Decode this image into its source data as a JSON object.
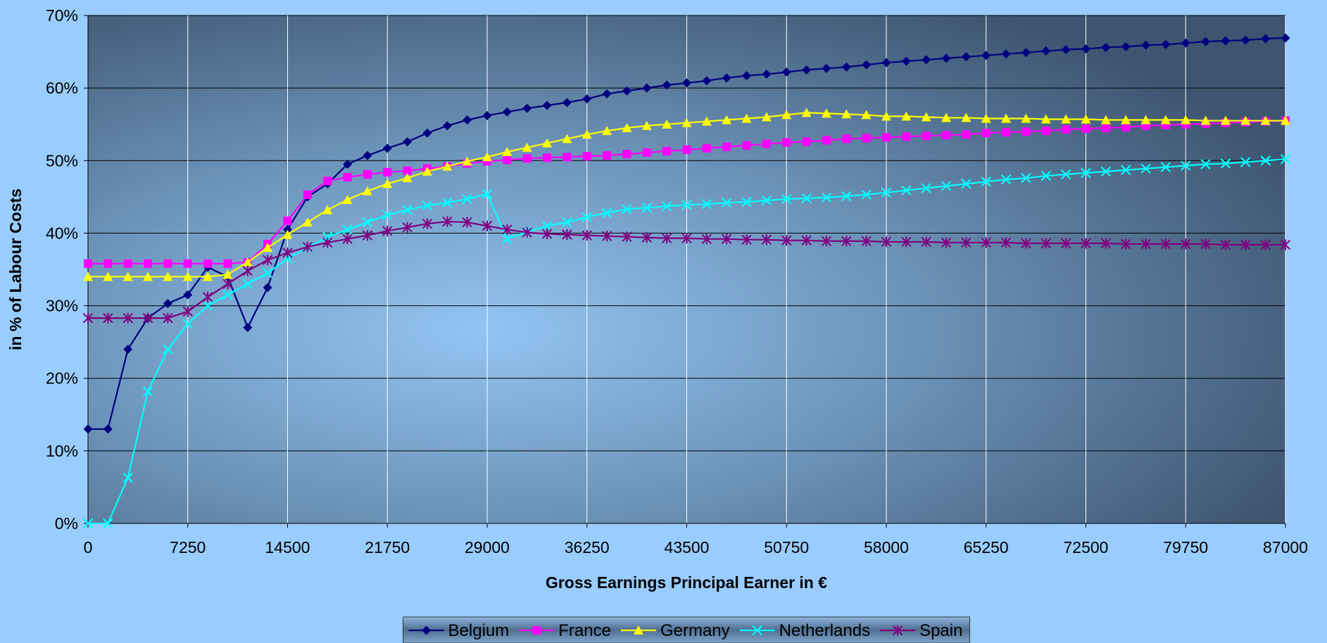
{
  "chart_data": {
    "type": "line",
    "xlabel": "Gross Earnings Principal Earner in €",
    "ylabel": "in % of Labour Costs",
    "x": [
      0,
      1450,
      2900,
      4350,
      5800,
      7250,
      8700,
      10150,
      11600,
      13050,
      14500,
      15950,
      17400,
      18850,
      20300,
      21750,
      23200,
      24650,
      26100,
      27550,
      29000,
      30450,
      31900,
      33350,
      34800,
      36250,
      37700,
      39150,
      40600,
      42050,
      43500,
      44950,
      46400,
      47850,
      49300,
      50750,
      52200,
      53650,
      55100,
      56550,
      58000,
      59450,
      60900,
      62350,
      63800,
      65250,
      66700,
      68150,
      69600,
      71050,
      72500,
      73950,
      75400,
      76850,
      78300,
      79750,
      81200,
      82650,
      84100,
      85550,
      87000
    ],
    "series": [
      {
        "name": "Belgium",
        "color": "#000080",
        "marker": "diamond",
        "values": [
          13,
          13,
          24,
          28.3,
          30.3,
          31.5,
          35.3,
          34,
          27,
          32.5,
          40.5,
          45,
          46.8,
          49.5,
          50.7,
          51.7,
          52.6,
          53.8,
          54.8,
          55.6,
          56.2,
          56.7,
          57.2,
          57.6,
          58,
          58.5,
          59.2,
          59.6,
          60,
          60.4,
          60.7,
          61,
          61.4,
          61.7,
          61.9,
          62.2,
          62.5,
          62.7,
          62.9,
          63.2,
          63.5,
          63.7,
          63.9,
          64.1,
          64.3,
          64.5,
          64.7,
          64.9,
          65.1,
          65.3,
          65.4,
          65.6,
          65.7,
          65.9,
          66,
          66.2,
          66.4,
          66.5,
          66.6,
          66.8,
          66.9
        ]
      },
      {
        "name": "France",
        "color": "#ff00ff",
        "marker": "square",
        "values": [
          35.8,
          35.8,
          35.8,
          35.8,
          35.8,
          35.8,
          35.8,
          35.8,
          36,
          38.5,
          41.7,
          45.3,
          47.2,
          47.7,
          48.1,
          48.4,
          48.6,
          48.9,
          49.2,
          49.6,
          49.9,
          50.1,
          50.3,
          50.4,
          50.5,
          50.6,
          50.7,
          50.9,
          51.1,
          51.3,
          51.5,
          51.7,
          51.9,
          52.1,
          52.3,
          52.5,
          52.6,
          52.8,
          53,
          53.1,
          53.2,
          53.3,
          53.4,
          53.5,
          53.6,
          53.8,
          53.9,
          54,
          54.1,
          54.3,
          54.4,
          54.5,
          54.6,
          54.8,
          54.9,
          55,
          55.1,
          55.2,
          55.3,
          55.4,
          55.5
        ]
      },
      {
        "name": "Germany",
        "color": "#ffff00",
        "marker": "triangle",
        "values": [
          34,
          34,
          34,
          34,
          34,
          34,
          34,
          34.3,
          36,
          38,
          39.8,
          41.5,
          43.2,
          44.6,
          45.8,
          46.8,
          47.6,
          48.5,
          49.2,
          49.9,
          50.5,
          51.2,
          51.8,
          52.4,
          53,
          53.6,
          54.1,
          54.5,
          54.8,
          55,
          55.2,
          55.4,
          55.6,
          55.8,
          56,
          56.3,
          56.6,
          56.5,
          56.4,
          56.3,
          56.1,
          56.1,
          56,
          55.9,
          55.9,
          55.8,
          55.8,
          55.8,
          55.7,
          55.7,
          55.7,
          55.6,
          55.6,
          55.6,
          55.6,
          55.6,
          55.5,
          55.5,
          55.5,
          55.5,
          55.5
        ]
      },
      {
        "name": "Netherlands",
        "color": "#00ffff",
        "marker": "x",
        "values": [
          0,
          0,
          6.3,
          18.2,
          24,
          27.5,
          30,
          31.5,
          33,
          34.5,
          36.5,
          38,
          39.5,
          40.5,
          41.5,
          42.5,
          43.2,
          43.8,
          44.2,
          44.7,
          45.4,
          39.2,
          40.2,
          41,
          41.5,
          42.2,
          42.8,
          43.3,
          43.5,
          43.7,
          43.9,
          44,
          44.2,
          44.3,
          44.5,
          44.7,
          44.8,
          44.9,
          45.1,
          45.3,
          45.6,
          45.9,
          46.2,
          46.5,
          46.8,
          47.1,
          47.4,
          47.6,
          47.9,
          48.1,
          48.3,
          48.5,
          48.7,
          48.9,
          49.1,
          49.3,
          49.5,
          49.6,
          49.8,
          50,
          50.2
        ]
      },
      {
        "name": "Spain",
        "color": "#800080",
        "marker": "star",
        "values": [
          28.3,
          28.3,
          28.3,
          28.3,
          28.3,
          29.2,
          31.2,
          33,
          34.8,
          36.3,
          37.3,
          38.1,
          38.7,
          39.2,
          39.7,
          40.3,
          40.8,
          41.3,
          41.6,
          41.5,
          41,
          40.5,
          40.1,
          39.9,
          39.8,
          39.7,
          39.6,
          39.5,
          39.4,
          39.3,
          39.3,
          39.2,
          39.2,
          39.1,
          39.1,
          39,
          39,
          38.9,
          38.9,
          38.9,
          38.8,
          38.8,
          38.8,
          38.7,
          38.7,
          38.7,
          38.7,
          38.6,
          38.6,
          38.6,
          38.6,
          38.6,
          38.5,
          38.5,
          38.5,
          38.5,
          38.5,
          38.4,
          38.4,
          38.4,
          38.4
        ]
      }
    ],
    "xlim": [
      0,
      87000
    ],
    "xticks": [
      0,
      7250,
      14500,
      21750,
      29000,
      36250,
      43500,
      50750,
      58000,
      65250,
      72500,
      79750,
      87000
    ],
    "ylim": [
      0,
      70
    ],
    "yticks": [
      {
        "value": 0,
        "label": "0%"
      },
      {
        "value": 10,
        "label": "10%"
      },
      {
        "value": 20,
        "label": "20%"
      },
      {
        "value": 30,
        "label": "30%"
      },
      {
        "value": 40,
        "label": "40%"
      },
      {
        "value": 50,
        "label": "50%"
      },
      {
        "value": 60,
        "label": "60%"
      },
      {
        "value": 70,
        "label": "70%"
      }
    ],
    "grid": true,
    "legend": "bottom"
  }
}
